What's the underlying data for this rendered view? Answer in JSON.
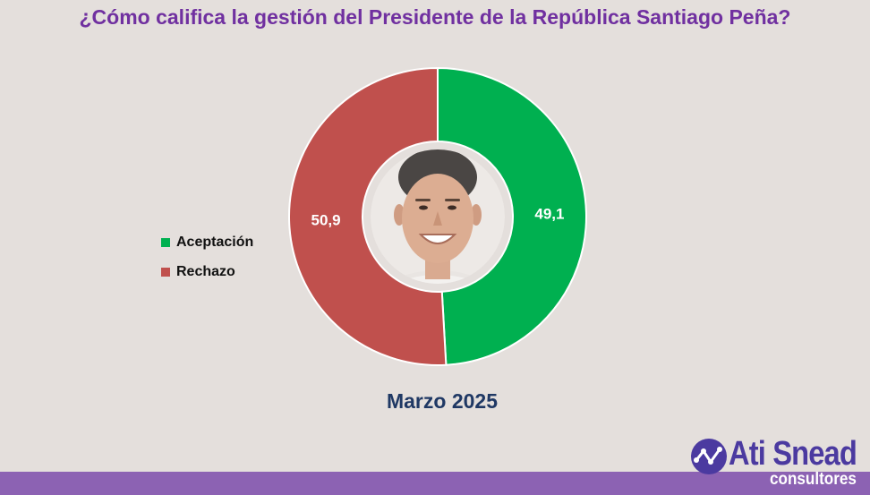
{
  "title": "¿Cómo califica la gestión del Presidente de la República Santiago Peña?",
  "subtitle": "Marzo 2025",
  "chart_data": {
    "type": "pie",
    "title": "¿Cómo califica la gestión del Presidente de la República Santiago Peña?",
    "categories": [
      "Aceptación",
      "Rechazo"
    ],
    "values": [
      49.1,
      50.9
    ],
    "value_labels": [
      "49,1",
      "50,9"
    ],
    "colors": [
      "#00b050",
      "#c0504d"
    ],
    "legend_position": "left",
    "donut": true
  },
  "legend": [
    {
      "label": "Aceptación",
      "color": "#00b050"
    },
    {
      "label": "Rechazo",
      "color": "#c0504d"
    }
  ],
  "logo": {
    "name": "Ati Snead",
    "sub": "consultores",
    "icon": "network-graph-icon",
    "color": "#4b3aa0"
  },
  "center_image": {
    "icon": "president-portrait"
  },
  "colors": {
    "background": "#e4dfdc",
    "title": "#7030a0",
    "subtitle": "#1f3864",
    "bar": "#8c62b3"
  }
}
